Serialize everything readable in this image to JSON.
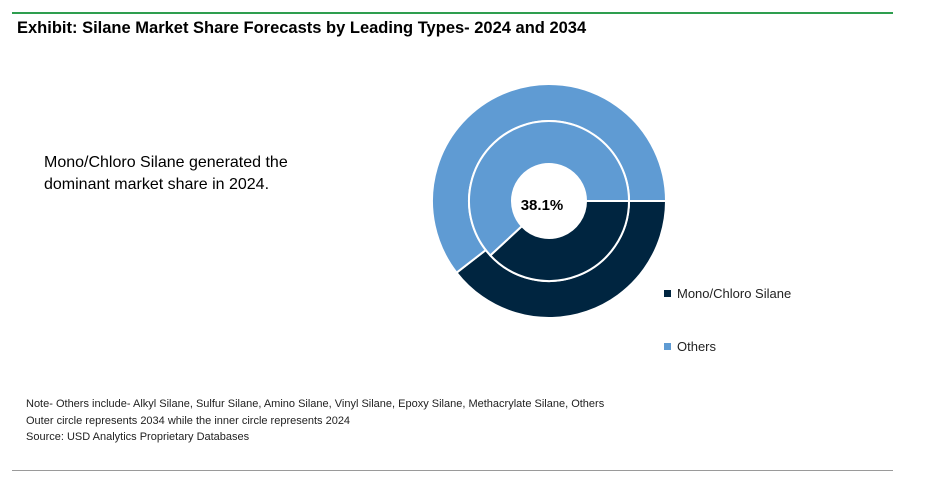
{
  "title": "Exhibit: Silane Market Share Forecasts by Leading Types- 2024 and 2034",
  "insight": "Mono/Chloro Silane generated the dominant market share in 2024.",
  "colors": {
    "rule_top": "#2e9e4f",
    "mono": "#002540",
    "others": "#5f9bd3"
  },
  "chart_data": {
    "type": "pie",
    "title": "",
    "center_label": "38.1%",
    "categories": [
      "Mono/Chloro Silane",
      "Others"
    ],
    "series": [
      {
        "name": "2034",
        "values": [
          39.5,
          60.5
        ]
      },
      {
        "name": "2024",
        "values": [
          38.1,
          61.9
        ]
      }
    ],
    "legend_position": "right"
  },
  "legend": [
    {
      "label": "Mono/Chloro Silane",
      "color": "#002540"
    },
    {
      "label": "Others",
      "color": "#5f9bd3"
    }
  ],
  "notes": [
    "Note- Others include- Alkyl Silane, Sulfur Silane, Amino Silane, Vinyl Silane, Epoxy Silane, Methacrylate Silane, Others",
    "Outer circle represents 2034 while the inner circle represents 2024",
    "Source: USD Analytics Proprietary Databases"
  ]
}
